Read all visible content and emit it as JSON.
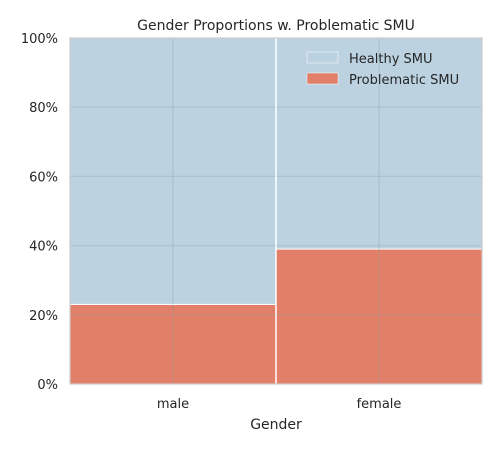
{
  "chart_data": {
    "type": "bar",
    "subtype": "stacked-proportional",
    "title": "Gender Proportions w. Problematic SMU",
    "xlabel": "Gender",
    "ylabel": "",
    "categories": [
      "male",
      "female"
    ],
    "ylim": [
      0,
      100
    ],
    "yticks": [
      0,
      20,
      40,
      60,
      80,
      100
    ],
    "ytick_labels": [
      "0%",
      "20%",
      "40%",
      "60%",
      "80%",
      "100%"
    ],
    "grid": true,
    "legend_position": "top-right",
    "series": [
      {
        "name": "Problematic SMU",
        "values": [
          23,
          39
        ],
        "color": "#e17f69"
      },
      {
        "name": "Healthy SMU",
        "values": [
          77,
          61
        ],
        "color": "#bcd2e1"
      }
    ],
    "legend": [
      {
        "label": "Healthy SMU",
        "color": "#bcd2e1"
      },
      {
        "label": "Problematic SMU",
        "color": "#e17f69"
      }
    ]
  }
}
